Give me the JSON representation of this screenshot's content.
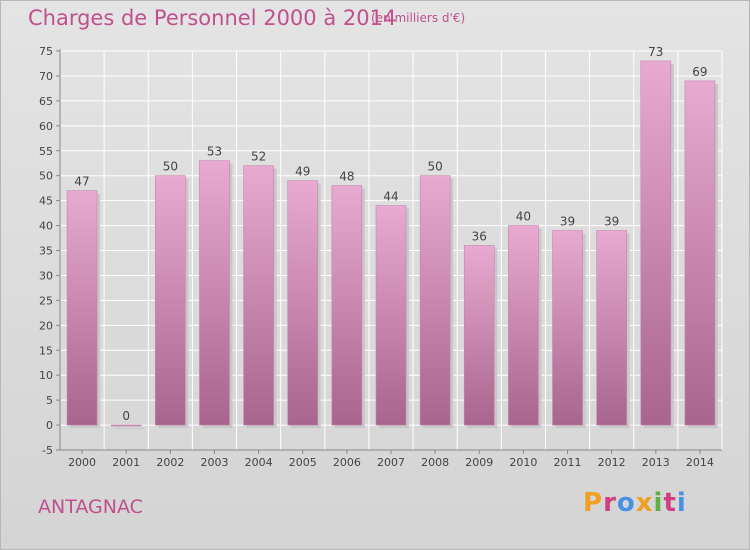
{
  "header": {
    "title": "Charges de Personnel 2000 à 2014",
    "subtitle": "(en milliers d'€)"
  },
  "footer": {
    "commune": "ANTAGNAC",
    "logo_text": "Proxiti"
  },
  "colors": {
    "title": "#c0508e",
    "bar_light": "#e5a6cb",
    "bar_dark": "#a8658d",
    "background": "#dcdcdc",
    "grid": "#ffffff",
    "logo_letters": [
      "#f0a020",
      "#d04080",
      "#4a90e2",
      "#f0a020",
      "#60b040",
      "#d04080",
      "#4a90e2"
    ]
  },
  "chart_data": {
    "type": "bar",
    "categories": [
      "2000",
      "2001",
      "2002",
      "2003",
      "2004",
      "2005",
      "2006",
      "2007",
      "2008",
      "2009",
      "2010",
      "2011",
      "2012",
      "2013",
      "2014"
    ],
    "values": [
      47,
      0,
      50,
      53,
      52,
      49,
      48,
      44,
      50,
      36,
      40,
      39,
      39,
      73,
      69
    ],
    "title": "Charges de Personnel 2000 à 2014",
    "xlabel": "",
    "ylabel": "",
    "ylim": [
      -5,
      75
    ],
    "yticks": [
      -5,
      0,
      5,
      10,
      15,
      20,
      25,
      30,
      35,
      40,
      45,
      50,
      55,
      60,
      65,
      70,
      75
    ],
    "grid": true,
    "legend": "none",
    "data_labels": true
  }
}
